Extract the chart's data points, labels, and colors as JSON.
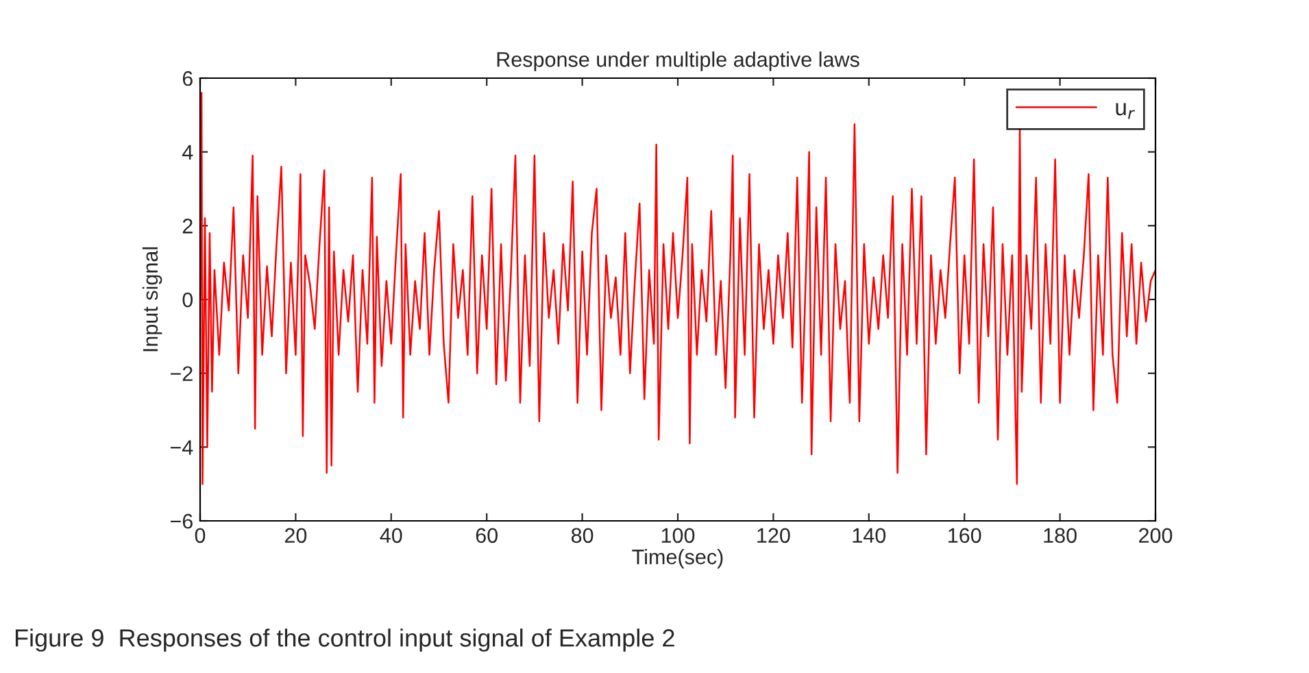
{
  "chart_data": {
    "type": "line",
    "title": "Response under multiple adaptive laws",
    "xlabel": "Time(sec)",
    "ylabel": "Input signal",
    "xlim": [
      0,
      200
    ],
    "ylim": [
      -6,
      6
    ],
    "xticks": [
      0,
      20,
      40,
      60,
      80,
      100,
      120,
      140,
      160,
      180,
      200
    ],
    "yticks": [
      -6,
      -4,
      -2,
      0,
      2,
      4,
      6
    ],
    "grid": false,
    "legend": "top right",
    "line_style": "solid",
    "marker": "none",
    "annotations": [
      "Figure 9  Responses of the control input signal of Example 2"
    ],
    "series": [
      {
        "name": "u$_{r}$",
        "color": "#ff0000",
        "x": [
          0,
          0.3,
          0.5,
          1,
          1.5,
          2,
          2.5,
          3,
          4,
          5,
          6,
          7,
          8,
          9,
          10,
          11,
          11.5,
          12,
          13,
          14,
          15,
          16,
          17,
          18,
          19,
          20,
          21,
          21.5,
          22,
          23,
          24,
          25,
          26,
          26.5,
          27,
          27.5,
          28,
          29,
          30,
          31,
          32,
          33,
          34,
          35,
          36,
          36.5,
          37,
          38,
          39,
          40,
          41,
          42,
          42.5,
          43,
          44,
          45,
          46,
          47,
          48,
          49,
          50,
          51,
          52,
          53,
          54,
          55,
          56,
          57,
          58,
          59,
          60,
          61,
          62,
          63,
          64,
          65,
          66,
          67,
          68,
          69,
          70,
          71,
          72,
          73,
          74,
          75,
          76,
          77,
          78,
          79,
          80,
          81,
          82,
          83,
          84,
          85,
          86,
          87,
          88,
          89,
          90,
          91,
          92,
          93,
          94,
          95,
          95.5,
          96,
          97,
          98,
          99,
          100,
          101,
          102,
          102.5,
          103,
          104,
          105,
          106,
          107,
          108,
          109,
          110,
          111,
          111.5,
          112,
          113,
          114,
          115,
          116,
          117,
          118,
          119,
          120,
          121,
          122,
          123,
          124,
          125,
          126,
          127,
          127.5,
          128,
          129,
          130,
          131,
          132,
          133,
          134,
          135,
          136,
          137,
          138,
          139,
          140,
          141,
          142,
          143,
          144,
          145,
          146,
          147,
          148,
          149,
          150,
          151,
          152,
          153,
          154,
          155,
          156,
          157,
          158,
          159,
          160,
          161,
          162,
          163,
          164,
          165,
          166,
          167,
          168,
          169,
          170,
          171,
          171.6,
          172,
          173,
          174,
          175,
          176,
          177,
          178,
          179,
          180,
          181,
          182,
          183,
          184,
          185,
          186,
          187,
          188,
          189,
          190,
          191,
          192,
          193,
          194,
          195,
          196,
          197,
          198,
          199,
          200
        ],
        "values": [
          0,
          5.6,
          -5,
          2.2,
          -4,
          1.8,
          -2.5,
          0.8,
          -1.5,
          1,
          -0.3,
          2.5,
          -2,
          1.2,
          -0.5,
          3.9,
          -3.5,
          2.8,
          -1.5,
          0.9,
          -1,
          1.5,
          3.6,
          -2,
          1,
          -1.5,
          3.4,
          -3.7,
          1.2,
          0.4,
          -0.8,
          1.5,
          3.5,
          -4.7,
          2.5,
          -4.5,
          1.3,
          -1.5,
          0.8,
          -0.6,
          1.2,
          -2.5,
          0.8,
          -1.2,
          3.3,
          -2.8,
          1.7,
          -1.8,
          0.5,
          -1.2,
          1.2,
          3.4,
          -3.2,
          1.5,
          -1.5,
          0.5,
          -0.8,
          1.8,
          -1.5,
          0.8,
          2.4,
          -1.2,
          -2.8,
          1.5,
          -0.5,
          0.8,
          -1.5,
          2.8,
          -2,
          1.2,
          -0.8,
          3,
          -2.3,
          1.5,
          -2.2,
          0.5,
          3.9,
          -2.8,
          1.2,
          -1.8,
          3.9,
          -3.3,
          1.8,
          -0.5,
          0.8,
          -1.2,
          1.5,
          -0.3,
          3.2,
          -2.8,
          1.3,
          -1.5,
          1.8,
          3,
          -3,
          1.2,
          -0.5,
          0.6,
          -1.5,
          1.8,
          -2,
          0.5,
          2.6,
          -2.7,
          0.8,
          -1.2,
          4.2,
          -3.8,
          1.5,
          -0.8,
          1.8,
          -0.5,
          1.2,
          3.3,
          -3.9,
          1.5,
          -1.5,
          0.8,
          -0.6,
          2.4,
          -1.5,
          0.5,
          -2.4,
          1.2,
          3.9,
          -3.2,
          2.2,
          -1.5,
          3.4,
          -3.2,
          1.5,
          -0.8,
          0.8,
          -1.2,
          1.2,
          -0.5,
          1.8,
          -1.3,
          3.3,
          -2.8,
          1.5,
          4,
          -4.2,
          2.5,
          -1.5,
          3.3,
          -3.3,
          1.5,
          -0.8,
          0.5,
          -2.8,
          4.75,
          -3.3,
          1.5,
          -1.2,
          0.6,
          -0.8,
          1.2,
          -0.5,
          2.8,
          -4.7,
          1.5,
          -1.5,
          3,
          -1.2,
          2.8,
          -4.2,
          1.2,
          -1.2,
          0.8,
          -0.5,
          1.5,
          3.3,
          -2,
          1.2,
          -1.2,
          3.8,
          -2.8,
          1.5,
          -1,
          2.5,
          -3.8,
          1.5,
          -1.5,
          1.2,
          -5,
          4.6,
          -2.5,
          1.2,
          -0.8,
          3.3,
          -2.8,
          1.5,
          -1.2,
          3.8,
          -2.8,
          1.2,
          -1.5,
          0.8,
          -0.5,
          1.2,
          3.4,
          -3,
          1.2,
          -1.5,
          3.3,
          -1.5,
          -2.8,
          1.8,
          -1,
          1.5,
          -1.2,
          1,
          -0.6,
          0.5,
          0.8
        ]
      }
    ]
  }
}
